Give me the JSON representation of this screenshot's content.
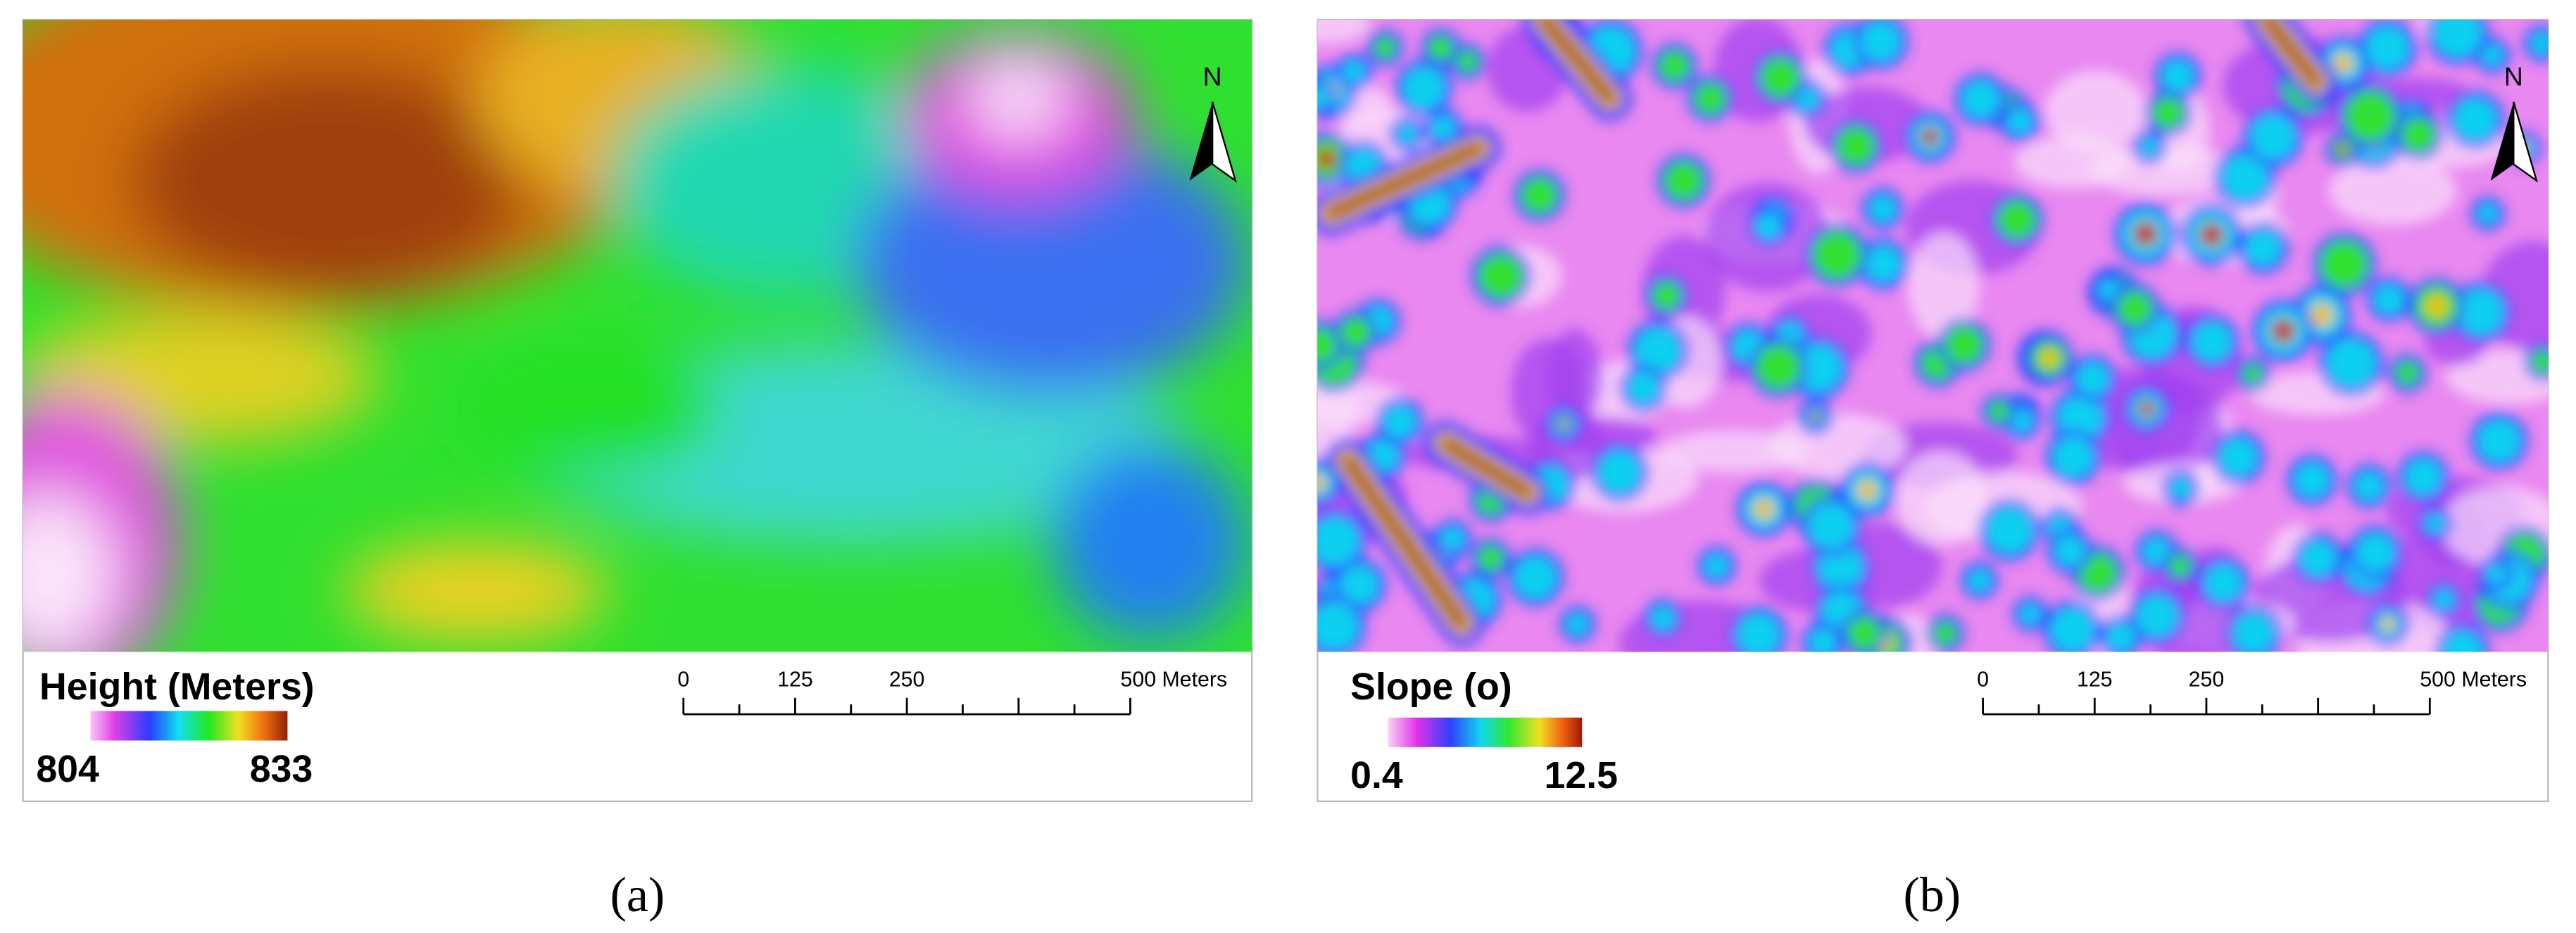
{
  "panels": [
    {
      "legend": {
        "title": "Height (Meters)",
        "min": "804",
        "max": "833"
      },
      "north": "N",
      "scale_bar": {
        "labels": [
          "0",
          "125",
          "250",
          "500 Meters"
        ]
      },
      "caption": "(a)"
    },
    {
      "legend": {
        "title": "Slope (o)",
        "min": "0.4",
        "max": "12.5"
      },
      "north": "N",
      "scale_bar": {
        "labels": [
          "0",
          "125",
          "250",
          "500 Meters"
        ]
      },
      "caption": "(b)"
    }
  ]
}
